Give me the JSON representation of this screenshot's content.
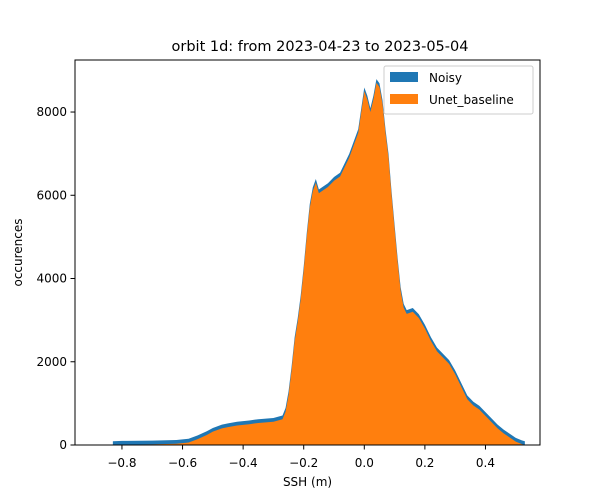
{
  "chart_data": {
    "type": "bar",
    "title": "orbit 1d: from 2023-04-23 to 2023-05-04",
    "xlabel": "SSH (m)",
    "ylabel": "occurences",
    "xlim": [
      -0.955,
      0.58
    ],
    "ylim": [
      0,
      9250
    ],
    "x_ticks": [
      -0.8,
      -0.6,
      -0.4,
      -0.2,
      0.0,
      0.2,
      0.4
    ],
    "x_tick_labels": [
      "−0.8",
      "−0.6",
      "−0.4",
      "−0.2",
      "0.0",
      "0.2",
      "0.4"
    ],
    "y_ticks": [
      0,
      2000,
      4000,
      6000,
      8000
    ],
    "y_tick_labels": [
      "0",
      "2000",
      "4000",
      "6000",
      "8000"
    ],
    "grid": false,
    "legend_position": "top-right",
    "histogram_points": [
      [
        -0.83,
        0
      ],
      [
        -0.8,
        8
      ],
      [
        -0.7,
        15
      ],
      [
        -0.62,
        30
      ],
      [
        -0.58,
        60
      ],
      [
        -0.55,
        140
      ],
      [
        -0.52,
        240
      ],
      [
        -0.5,
        320
      ],
      [
        -0.47,
        400
      ],
      [
        -0.45,
        430
      ],
      [
        -0.42,
        470
      ],
      [
        -0.38,
        500
      ],
      [
        -0.35,
        530
      ],
      [
        -0.3,
        560
      ],
      [
        -0.27,
        620
      ],
      [
        -0.26,
        800
      ],
      [
        -0.25,
        1200
      ],
      [
        -0.24,
        1800
      ],
      [
        -0.23,
        2500
      ],
      [
        -0.22,
        2950
      ],
      [
        -0.21,
        3500
      ],
      [
        -0.2,
        4200
      ],
      [
        -0.19,
        5000
      ],
      [
        -0.18,
        5700
      ],
      [
        -0.17,
        6100
      ],
      [
        -0.16,
        6300
      ],
      [
        -0.15,
        6050
      ],
      [
        -0.14,
        6100
      ],
      [
        -0.12,
        6200
      ],
      [
        -0.1,
        6350
      ],
      [
        -0.08,
        6450
      ],
      [
        -0.06,
        6750
      ],
      [
        -0.05,
        6900
      ],
      [
        -0.04,
        7100
      ],
      [
        -0.02,
        7500
      ],
      [
        -0.01,
        8000
      ],
      [
        0.0,
        8500
      ],
      [
        0.01,
        8300
      ],
      [
        0.02,
        8000
      ],
      [
        0.03,
        8300
      ],
      [
        0.04,
        8700
      ],
      [
        0.05,
        8600
      ],
      [
        0.06,
        8200
      ],
      [
        0.07,
        7500
      ],
      [
        0.08,
        6900
      ],
      [
        0.09,
        6000
      ],
      [
        0.1,
        5200
      ],
      [
        0.11,
        4400
      ],
      [
        0.12,
        3700
      ],
      [
        0.13,
        3300
      ],
      [
        0.14,
        3150
      ],
      [
        0.16,
        3200
      ],
      [
        0.18,
        3050
      ],
      [
        0.2,
        2800
      ],
      [
        0.22,
        2500
      ],
      [
        0.24,
        2250
      ],
      [
        0.26,
        2100
      ],
      [
        0.28,
        1950
      ],
      [
        0.3,
        1700
      ],
      [
        0.32,
        1400
      ],
      [
        0.34,
        1100
      ],
      [
        0.36,
        950
      ],
      [
        0.38,
        850
      ],
      [
        0.4,
        700
      ],
      [
        0.42,
        550
      ],
      [
        0.44,
        400
      ],
      [
        0.46,
        280
      ],
      [
        0.48,
        180
      ],
      [
        0.5,
        80
      ],
      [
        0.52,
        20
      ],
      [
        0.53,
        0
      ]
    ],
    "series": [
      {
        "name": "Noisy",
        "color": "#1f77b4"
      },
      {
        "name": "Unet_baseline",
        "color": "#ff7f0e"
      }
    ]
  }
}
